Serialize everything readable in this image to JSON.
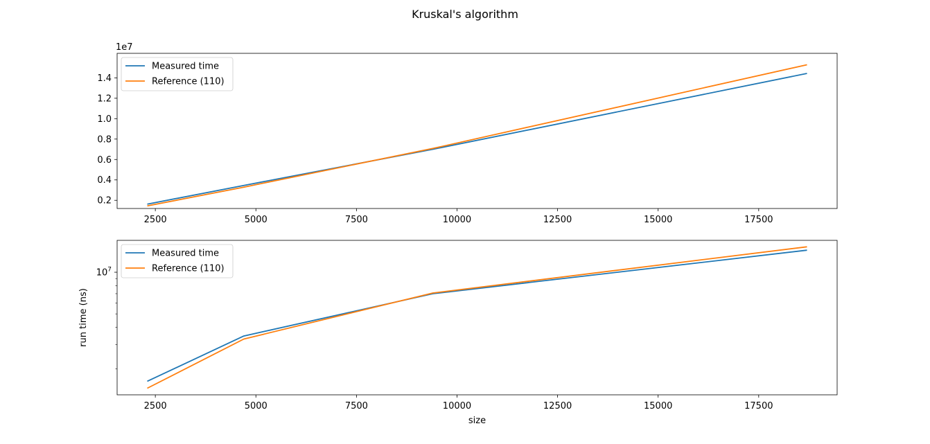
{
  "figure": {
    "suptitle": "Kruskal's algorithm"
  },
  "chart_data": [
    {
      "type": "line",
      "title": "",
      "xlabel": "",
      "ylabel": "",
      "yscale": "linear",
      "offset_text": "1e7",
      "xlim": [
        1550,
        19450
      ],
      "ylim": [
        1200000,
        16400000
      ],
      "xticks": [
        2500,
        5000,
        7500,
        10000,
        12500,
        15000,
        17500
      ],
      "xtick_labels": [
        "2500",
        "5000",
        "7500",
        "10000",
        "12500",
        "15000",
        "17500"
      ],
      "yticks": [
        2000000,
        4000000,
        6000000,
        8000000,
        10000000,
        12000000,
        14000000
      ],
      "ytick_labels": [
        "0.2",
        "0.4",
        "0.6",
        "0.8",
        "1.0",
        "1.2",
        "1.4"
      ],
      "grid": false,
      "legend": {
        "placement": "upper left"
      },
      "series": [
        {
          "name": "Measured time",
          "color": "#1f77b4",
          "x": [
            2300,
            4700,
            9400,
            18700
          ],
          "y": [
            1630000,
            3460000,
            7000000,
            14430000
          ]
        },
        {
          "name": "Reference (110)",
          "color": "#ff7f0e",
          "x": [
            2300,
            4700,
            9400,
            18700
          ],
          "y": [
            1450000,
            3290000,
            7080000,
            15280000
          ]
        }
      ]
    },
    {
      "type": "line",
      "title": "",
      "xlabel": "size",
      "ylabel": "run time (ns)",
      "yscale": "log",
      "xlim": [
        1550,
        19450
      ],
      "ylim": [
        1300000,
        17000000
      ],
      "xticks": [
        2500,
        5000,
        7500,
        10000,
        12500,
        15000,
        17500
      ],
      "xtick_labels": [
        "2500",
        "5000",
        "7500",
        "10000",
        "12500",
        "15000",
        "17500"
      ],
      "yticks_major": [
        10000000
      ],
      "ytick_major_base": "10",
      "ytick_major_exp": "7",
      "yticks_minor": [
        2000000,
        3000000,
        4000000,
        5000000,
        6000000,
        7000000,
        8000000,
        9000000
      ],
      "grid": false,
      "legend": {
        "placement": "upper left"
      },
      "series": [
        {
          "name": "Measured time",
          "color": "#1f77b4",
          "x": [
            2300,
            4700,
            9400,
            18700
          ],
          "y": [
            1630000,
            3460000,
            7000000,
            14430000
          ]
        },
        {
          "name": "Reference (110)",
          "color": "#ff7f0e",
          "x": [
            2300,
            4700,
            9400,
            18700
          ],
          "y": [
            1450000,
            3290000,
            7080000,
            15280000
          ]
        }
      ]
    }
  ]
}
